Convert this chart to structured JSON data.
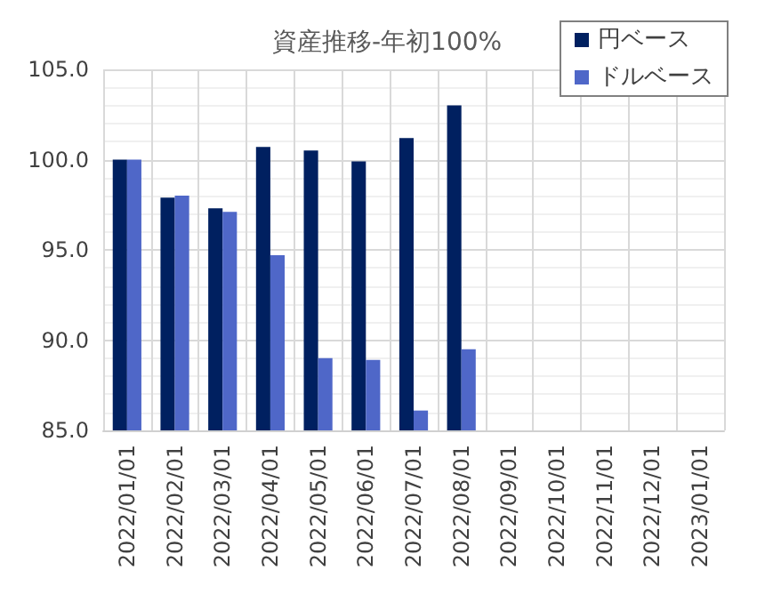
{
  "chart_data": {
    "type": "bar",
    "title": "資産推移-年初100%",
    "categories": [
      "2022/01/01",
      "2022/02/01",
      "2022/03/01",
      "2022/04/01",
      "2022/05/01",
      "2022/06/01",
      "2022/07/01",
      "2022/08/01",
      "2022/09/01",
      "2022/10/01",
      "2022/11/01",
      "2022/12/01",
      "2023/01/01"
    ],
    "series": [
      {
        "name": "円ベース",
        "color": "#002060",
        "values": [
          100.0,
          97.9,
          97.3,
          100.7,
          100.5,
          99.9,
          101.2,
          103.0,
          null,
          null,
          null,
          null,
          null
        ]
      },
      {
        "name": "ドルベース",
        "color": "#4f67c8",
        "values": [
          100.0,
          98.0,
          97.1,
          94.7,
          89.0,
          88.9,
          86.1,
          89.5,
          null,
          null,
          null,
          null,
          null
        ]
      }
    ],
    "ylim": [
      85,
      105
    ],
    "yticks": [
      {
        "value": 85,
        "label": "85.0"
      },
      {
        "value": 90,
        "label": "90.0"
      },
      {
        "value": 95,
        "label": "95.0"
      },
      {
        "value": 100,
        "label": "100.0"
      },
      {
        "value": 105,
        "label": "105.0"
      }
    ],
    "grid": true,
    "legend": "top right"
  }
}
